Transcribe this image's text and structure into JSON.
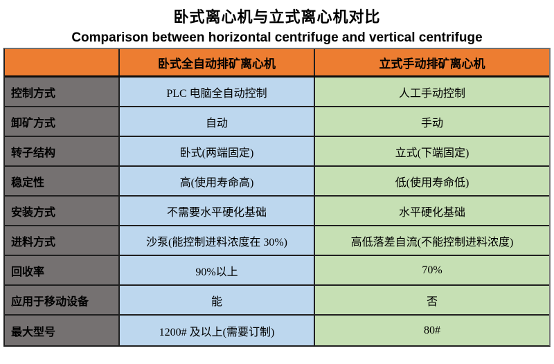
{
  "page": {
    "title_zh": "卧式离心机与立式离心机对比",
    "title_en": "Comparison between horizontal centrifuge and vertical centrifuge"
  },
  "colors": {
    "header_orange": "#ED7D31",
    "label_gray": "#757171",
    "horizontal_column_blue": "#BDD7EE",
    "vertical_column_green": "#C6E0B4",
    "border": "#1F1F1F",
    "text": "#000000"
  },
  "chart_data": {
    "type": "table",
    "title": "卧式离心机与立式离心机对比",
    "subtitle": "Comparison between horizontal centrifuge and vertical centrifuge",
    "columns": [
      "",
      "卧式全自动排矿离心机",
      "立式手动排矿离心机"
    ],
    "rows": [
      [
        "控制方式",
        "PLC 电脑全自动控制",
        "人工手动控制"
      ],
      [
        "卸矿方式",
        "自动",
        "手动"
      ],
      [
        "转子结构",
        "卧式(两端固定)",
        "立式(下端固定)"
      ],
      [
        "稳定性",
        "高(使用寿命高)",
        "低(使用寿命低)"
      ],
      [
        "安装方式",
        "不需要水平硬化基础",
        "水平硬化基础"
      ],
      [
        "进料方式",
        "沙泵(能控制进料浓度在 30%)",
        "高低落差自流(不能控制进料浓度)"
      ],
      [
        "回收率",
        "90%以上",
        "70%"
      ],
      [
        "应用于移动设备",
        "能",
        "否"
      ],
      [
        "最大型号",
        "1200# 及以上(需要订制)",
        "80#"
      ]
    ]
  }
}
